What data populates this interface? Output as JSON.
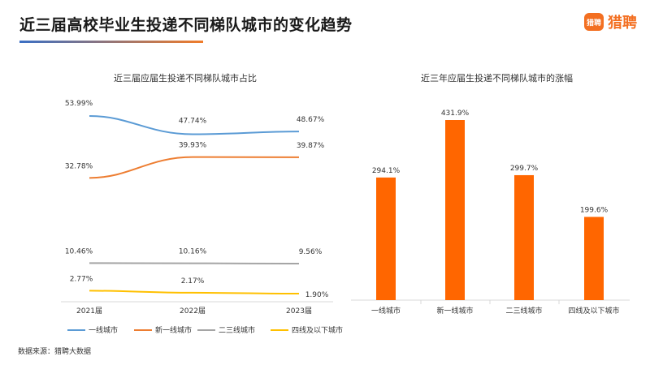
{
  "header": {
    "title": "近三届高校毕业生投递不同梯队城市的变化趋势",
    "logo_text": "猎聘",
    "logo_icon_text": "猎聘"
  },
  "source": "数据来源：猎聘大数据",
  "chart_data": [
    {
      "type": "line",
      "title": "近三届应届生投递不同梯队城市占比",
      "categories": [
        "2021届",
        "2022届",
        "2023届"
      ],
      "series": [
        {
          "name": "一线城市",
          "values": [
            53.99,
            47.74,
            48.67
          ],
          "labels": [
            "53.99%",
            "47.74%",
            "48.67%"
          ],
          "color": "#5b9bd5"
        },
        {
          "name": "新一线城市",
          "values": [
            32.78,
            39.93,
            39.87
          ],
          "labels": [
            "32.78%",
            "39.93%",
            "39.87%"
          ],
          "color": "#ed7d31"
        },
        {
          "name": "二三线城市",
          "values": [
            10.46,
            10.16,
            9.56
          ],
          "labels": [
            "10.46%",
            "10.16%",
            "9.56%"
          ],
          "color": "#a5a5a5"
        },
        {
          "name": "四线及以下城市",
          "values": [
            2.77,
            2.17,
            1.9
          ],
          "labels": [
            "2.77%",
            "2.17%",
            "1.90%"
          ],
          "color": "#ffc000"
        }
      ],
      "legend_position": "bottom"
    },
    {
      "type": "bar",
      "title": "近三年应届生投递不同梯队城市的涨幅",
      "categories": [
        "一线城市",
        "新一线城市",
        "二三线城市",
        "四线及以下城市"
      ],
      "values": [
        294.1,
        431.9,
        299.7,
        199.6
      ],
      "labels": [
        "294.1%",
        "431.9%",
        "299.7%",
        "199.6%"
      ],
      "color": "#ff6600"
    }
  ]
}
